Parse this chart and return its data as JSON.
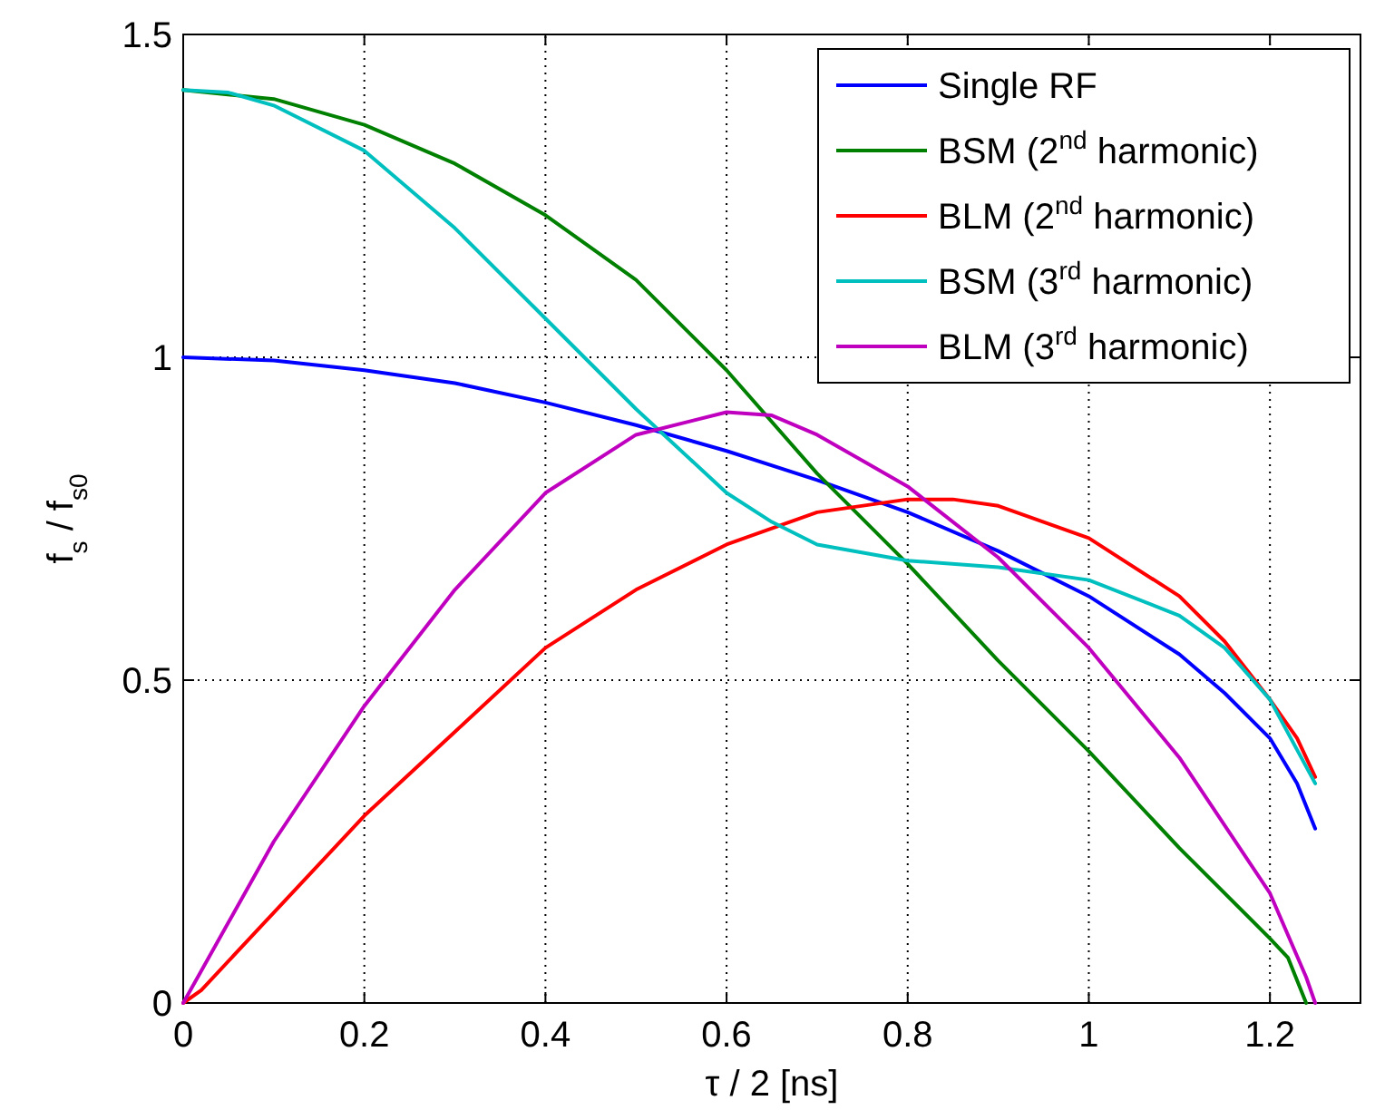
{
  "chart_data": {
    "type": "line",
    "xlabel": "τ / 2 [ns]",
    "ylabel": "f$_{s}$ / f$_{s0}$",
    "xlim": [
      0,
      1.3
    ],
    "xticks": [
      0,
      0.2,
      0.4,
      0.6,
      0.8,
      1,
      1.2
    ],
    "ylim": [
      0,
      1.5
    ],
    "yticks": [
      0,
      0.5,
      1,
      1.5
    ],
    "grid": true,
    "legend": "top right",
    "marker": "none",
    "line_style": "solid",
    "series": [
      {
        "name": "Single RF",
        "color": "#0000ff",
        "x": [
          0,
          0.1,
          0.2,
          0.3,
          0.4,
          0.5,
          0.6,
          0.7,
          0.8,
          0.9,
          1.0,
          1.1,
          1.15,
          1.2,
          1.23,
          1.25
        ],
        "values": [
          1.0,
          0.995,
          0.98,
          0.96,
          0.93,
          0.895,
          0.855,
          0.81,
          0.76,
          0.7,
          0.63,
          0.54,
          0.48,
          0.41,
          0.34,
          0.27
        ]
      },
      {
        "name": "BSM (2$^{nd}$ harmonic)",
        "color": "#008000",
        "x": [
          0,
          0.1,
          0.2,
          0.3,
          0.4,
          0.5,
          0.6,
          0.7,
          0.8,
          0.9,
          1.0,
          1.1,
          1.2,
          1.22,
          1.24
        ],
        "values": [
          1.414,
          1.4,
          1.36,
          1.3,
          1.22,
          1.12,
          0.98,
          0.82,
          0.68,
          0.53,
          0.39,
          0.24,
          0.1,
          0.07,
          0.0
        ]
      },
      {
        "name": "BLM (2$^{nd}$ harmonic)",
        "color": "#ff0000",
        "x": [
          0,
          0.02,
          0.1,
          0.2,
          0.3,
          0.4,
          0.5,
          0.6,
          0.7,
          0.8,
          0.85,
          0.9,
          1.0,
          1.1,
          1.15,
          1.2,
          1.23,
          1.25
        ],
        "values": [
          0,
          0.02,
          0.14,
          0.29,
          0.42,
          0.55,
          0.64,
          0.71,
          0.76,
          0.78,
          0.78,
          0.77,
          0.72,
          0.63,
          0.56,
          0.47,
          0.41,
          0.35
        ]
      },
      {
        "name": "BSM (3$^{rd}$ harmonic)",
        "color": "#00bfbf",
        "x": [
          0,
          0.05,
          0.1,
          0.2,
          0.3,
          0.4,
          0.5,
          0.6,
          0.65,
          0.7,
          0.8,
          0.9,
          1.0,
          1.1,
          1.15,
          1.2,
          1.25
        ],
        "values": [
          1.414,
          1.41,
          1.39,
          1.32,
          1.2,
          1.06,
          0.92,
          0.79,
          0.745,
          0.71,
          0.685,
          0.675,
          0.655,
          0.6,
          0.55,
          0.47,
          0.34
        ]
      },
      {
        "name": "BLM (3$^{rd}$ harmonic)",
        "color": "#bf00bf",
        "x": [
          0,
          0.02,
          0.1,
          0.2,
          0.3,
          0.4,
          0.5,
          0.6,
          0.65,
          0.7,
          0.8,
          0.9,
          1.0,
          1.1,
          1.2,
          1.24,
          1.25
        ],
        "values": [
          0,
          0.05,
          0.25,
          0.46,
          0.64,
          0.79,
          0.88,
          0.915,
          0.91,
          0.88,
          0.8,
          0.69,
          0.55,
          0.38,
          0.17,
          0.04,
          0
        ]
      }
    ]
  }
}
